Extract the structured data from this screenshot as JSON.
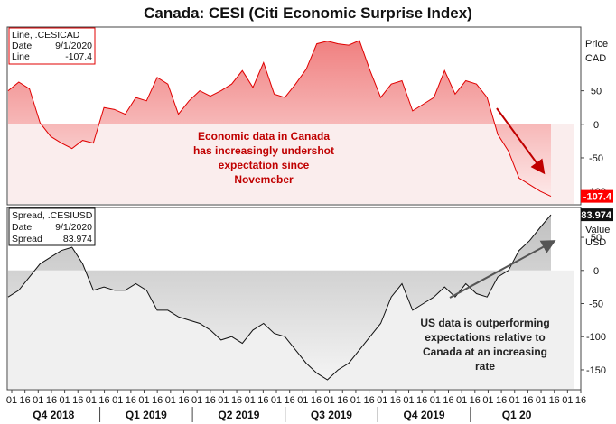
{
  "chart_data": {
    "title": "Canada: CESI (Citi Economic Surprise Index)",
    "type": "area",
    "panels": [
      {
        "name": ".CESICAD",
        "series_type": "Line",
        "axis_label": [
          "Price",
          "CAD"
        ],
        "ylim": [
          -120,
          145
        ],
        "yticks": [
          50,
          0,
          -50,
          -100
        ],
        "zero_band": true,
        "colors": {
          "line": "#e00000",
          "fill_top": "#f08080",
          "fill_bottom": "#fde8e8",
          "tag_bg": "#ff0000",
          "tag_text": "#ffffff"
        },
        "legend": {
          "name_label": "Line, .CESICAD",
          "date_key": "Date",
          "date_value": "9/1/2020",
          "value_key": "Line",
          "value": "-107.4"
        },
        "last_value_tag": "-107.4",
        "annotation": [
          "Economic data in Canada",
          "has increasingly undershot",
          "expectation since",
          "Novemeber"
        ],
        "points": [
          [
            0,
            50
          ],
          [
            1,
            63
          ],
          [
            2,
            53
          ],
          [
            3,
            2
          ],
          [
            4,
            -18
          ],
          [
            5,
            -28
          ],
          [
            6,
            -36
          ],
          [
            7,
            -24
          ],
          [
            8,
            -28
          ],
          [
            9,
            25
          ],
          [
            10,
            22
          ],
          [
            11,
            15
          ],
          [
            12,
            40
          ],
          [
            13,
            35
          ],
          [
            14,
            70
          ],
          [
            15,
            60
          ],
          [
            16,
            15
          ],
          [
            17,
            35
          ],
          [
            18,
            50
          ],
          [
            19,
            42
          ],
          [
            20,
            50
          ],
          [
            21,
            60
          ],
          [
            22,
            80
          ],
          [
            23,
            55
          ],
          [
            24,
            92
          ],
          [
            25,
            45
          ],
          [
            26,
            40
          ],
          [
            27,
            60
          ],
          [
            28,
            82
          ],
          [
            29,
            120
          ],
          [
            30,
            124
          ],
          [
            31,
            120
          ],
          [
            32,
            118
          ],
          [
            33,
            125
          ],
          [
            34,
            80
          ],
          [
            35,
            40
          ],
          [
            36,
            60
          ],
          [
            37,
            65
          ],
          [
            38,
            20
          ],
          [
            39,
            30
          ],
          [
            40,
            40
          ],
          [
            41,
            80
          ],
          [
            42,
            45
          ],
          [
            43,
            65
          ],
          [
            44,
            60
          ],
          [
            45,
            40
          ],
          [
            46,
            -15
          ],
          [
            47,
            -40
          ],
          [
            48,
            -80
          ],
          [
            49,
            -90
          ],
          [
            50,
            -100
          ],
          [
            51,
            -107.4
          ]
        ]
      },
      {
        "name": ".CESIUSD",
        "series_type": "Spread",
        "axis_label": [
          "Value",
          "USD"
        ],
        "ylim": [
          -180,
          95
        ],
        "yticks": [
          50,
          0,
          -50,
          -100,
          -150
        ],
        "zero_band": true,
        "colors": {
          "line": "#111111",
          "fill_top": "#c0c0c0",
          "fill_bottom": "#f4f4f4",
          "tag_bg": "#111111",
          "tag_text": "#ffffff"
        },
        "legend": {
          "name_label": "Spread, .CESIUSD",
          "date_key": "Date",
          "date_value": "9/1/2020",
          "value_key": "Spread",
          "value": "83.974"
        },
        "last_value_tag": "83.974",
        "annotation": [
          "US data is outperforming",
          "expectations relative to",
          "Canada at an increasing",
          "rate"
        ],
        "points": [
          [
            0,
            -40
          ],
          [
            1,
            -30
          ],
          [
            2,
            -10
          ],
          [
            3,
            10
          ],
          [
            4,
            20
          ],
          [
            5,
            30
          ],
          [
            6,
            35
          ],
          [
            7,
            10
          ],
          [
            8,
            -30
          ],
          [
            9,
            -25
          ],
          [
            10,
            -30
          ],
          [
            11,
            -30
          ],
          [
            12,
            -20
          ],
          [
            13,
            -30
          ],
          [
            14,
            -60
          ],
          [
            15,
            -60
          ],
          [
            16,
            -70
          ],
          [
            17,
            -75
          ],
          [
            18,
            -80
          ],
          [
            19,
            -90
          ],
          [
            20,
            -105
          ],
          [
            21,
            -100
          ],
          [
            22,
            -110
          ],
          [
            23,
            -90
          ],
          [
            24,
            -80
          ],
          [
            25,
            -95
          ],
          [
            26,
            -100
          ],
          [
            27,
            -120
          ],
          [
            28,
            -140
          ],
          [
            29,
            -155
          ],
          [
            30,
            -165
          ],
          [
            31,
            -150
          ],
          [
            32,
            -140
          ],
          [
            33,
            -120
          ],
          [
            34,
            -100
          ],
          [
            35,
            -80
          ],
          [
            36,
            -40
          ],
          [
            37,
            -20
          ],
          [
            38,
            -60
          ],
          [
            39,
            -50
          ],
          [
            40,
            -40
          ],
          [
            41,
            -25
          ],
          [
            42,
            -40
          ],
          [
            43,
            -20
          ],
          [
            44,
            -35
          ],
          [
            45,
            -40
          ],
          [
            46,
            -10
          ],
          [
            47,
            0
          ],
          [
            48,
            30
          ],
          [
            49,
            45
          ],
          [
            50,
            65
          ],
          [
            51,
            83.974
          ]
        ]
      }
    ],
    "x_axis": {
      "week_labels": [
        "01",
        "16",
        "01",
        "16",
        "01",
        "16",
        "01",
        "16",
        "01",
        "16",
        "01",
        "16",
        "01",
        "16",
        "01",
        "16",
        "01",
        "16",
        "01",
        "16",
        "01",
        "16",
        "01",
        "16",
        "01",
        "16",
        "01",
        "16",
        "01",
        "16",
        "01",
        "16",
        "01",
        "16",
        "01",
        "16",
        "01",
        "16",
        "01",
        "16",
        "01",
        "16",
        "01",
        "16"
      ],
      "quarters": [
        {
          "label": "Q4 2018",
          "start_index": 0,
          "end_index": 6
        },
        {
          "label": "Q1 2019",
          "start_index": 6,
          "end_index": 12
        },
        {
          "label": "Q2 2019",
          "start_index": 12,
          "end_index": 18
        },
        {
          "label": "Q3 2019",
          "start_index": 18,
          "end_index": 24
        },
        {
          "label": "Q4 2019",
          "start_index": 24,
          "end_index": 30
        },
        {
          "label": "Q1 20",
          "start_index": 30,
          "end_index": 31
        }
      ]
    }
  }
}
